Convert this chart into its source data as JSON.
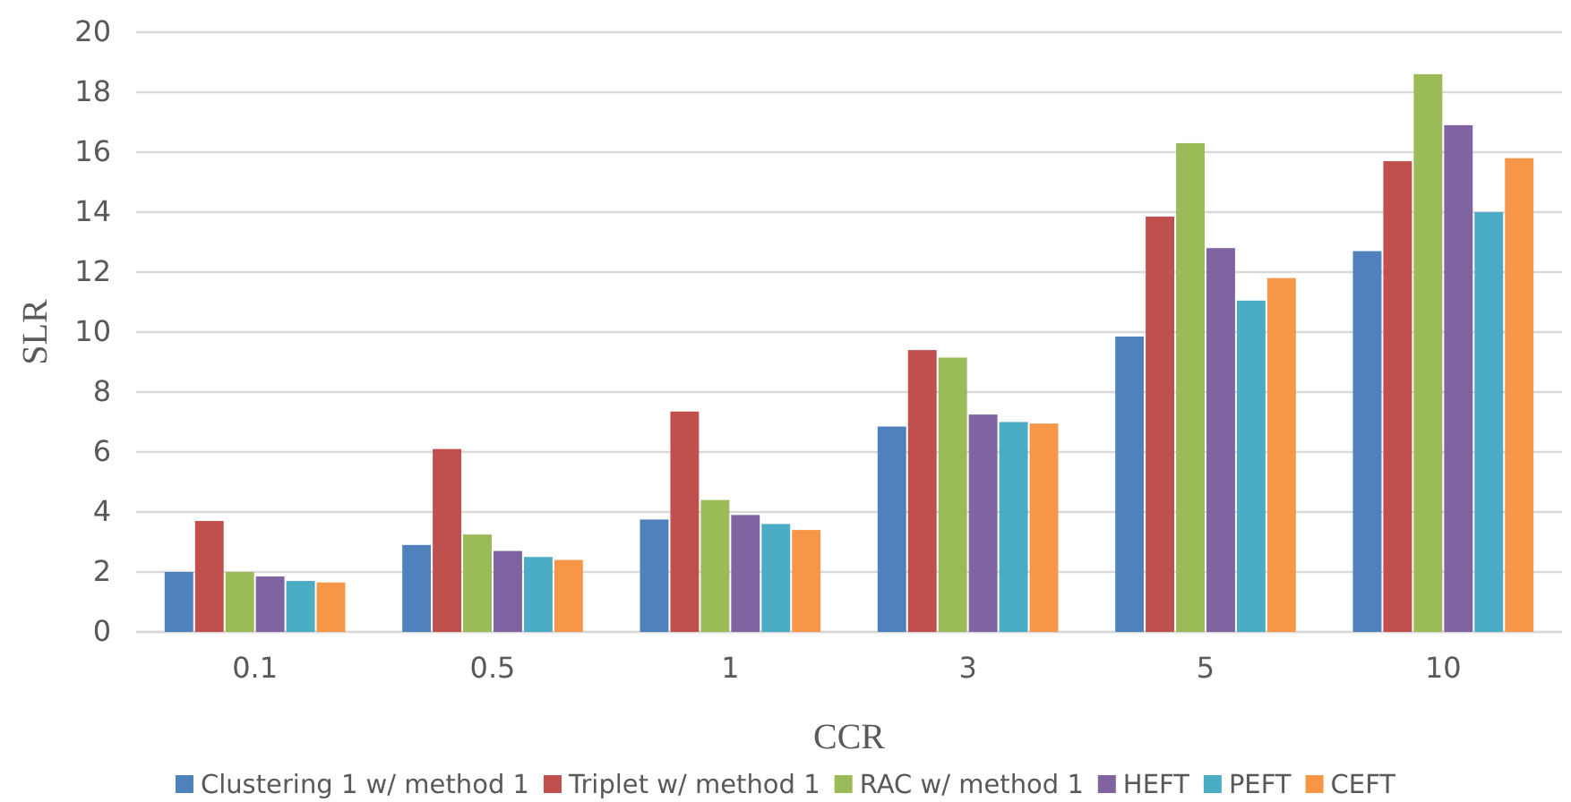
{
  "chart_data": {
    "type": "bar",
    "xlabel": "CCR",
    "ylabel": "SLR",
    "categories": [
      "0.1",
      "0.5",
      "1",
      "3",
      "5",
      "10"
    ],
    "series": [
      {
        "name": "Clustering 1 w/ method 1",
        "color": "#4f81bd",
        "values": [
          2.0,
          2.9,
          3.75,
          6.85,
          9.85,
          12.7
        ]
      },
      {
        "name": "Triplet w/ method 1",
        "color": "#c0504d",
        "values": [
          3.7,
          6.1,
          7.35,
          9.4,
          13.85,
          15.7
        ]
      },
      {
        "name": "RAC w/ method 1",
        "color": "#9bbb59",
        "values": [
          2.0,
          3.25,
          4.4,
          9.15,
          16.3,
          18.6
        ]
      },
      {
        "name": "HEFT",
        "color": "#8064a2",
        "values": [
          1.85,
          2.7,
          3.9,
          7.25,
          12.8,
          16.9
        ]
      },
      {
        "name": "PEFT",
        "color": "#4bacc6",
        "values": [
          1.7,
          2.5,
          3.6,
          7.0,
          11.05,
          14.0
        ]
      },
      {
        "name": "CEFT",
        "color": "#f79646",
        "values": [
          1.65,
          2.4,
          3.4,
          6.95,
          11.8,
          15.8
        ]
      }
    ],
    "ylim": [
      0,
      20
    ],
    "yticks": [
      0,
      2,
      4,
      6,
      8,
      10,
      12,
      14,
      16,
      18,
      20
    ],
    "grid": "y",
    "legend": "bottom"
  }
}
